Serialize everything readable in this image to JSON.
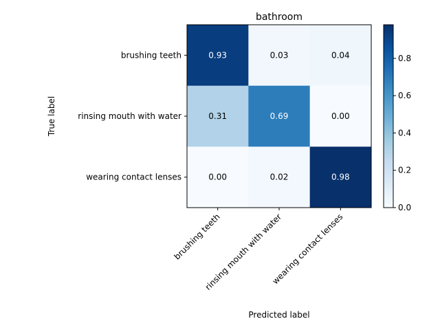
{
  "chart_data": {
    "type": "heatmap",
    "title": "bathroom",
    "xlabel": "Predicted label",
    "ylabel": "True label",
    "x_categories": [
      "brushing teeth",
      "rinsing mouth with water",
      "wearing contact lenses"
    ],
    "y_categories": [
      "brushing teeth",
      "rinsing mouth with water",
      "wearing contact lenses"
    ],
    "values": [
      [
        0.93,
        0.03,
        0.04
      ],
      [
        0.31,
        0.69,
        0.0
      ],
      [
        0.0,
        0.02,
        0.98
      ]
    ],
    "value_labels": [
      [
        "0.93",
        "0.03",
        "0.04"
      ],
      [
        "0.31",
        "0.69",
        "0.00"
      ],
      [
        "0.00",
        "0.02",
        "0.98"
      ]
    ],
    "colormap": "Blues",
    "colorbar": {
      "range": [
        0,
        0.98
      ],
      "ticks": [
        0.0,
        0.2,
        0.4,
        0.6,
        0.8
      ],
      "tick_labels": [
        "0.0",
        "0.2",
        "0.4",
        "0.6",
        "0.8"
      ]
    },
    "grid": false
  }
}
